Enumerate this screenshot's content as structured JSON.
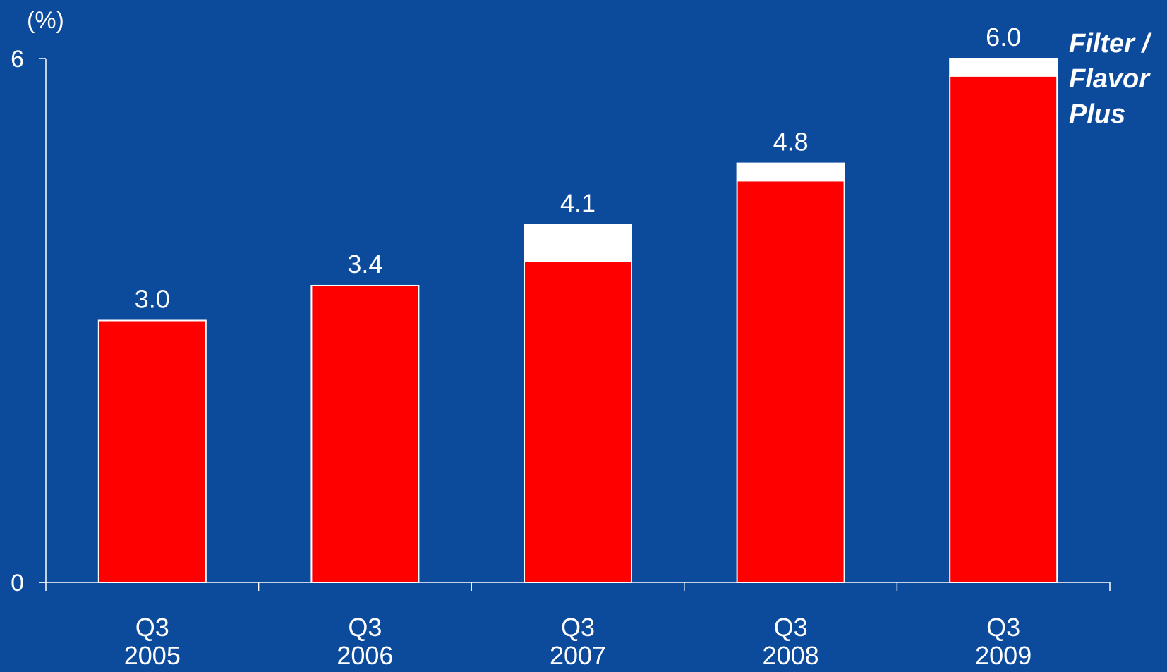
{
  "chart_data": {
    "type": "bar",
    "stacked": true,
    "unit_label": "(%)",
    "title": "",
    "xlabel": "",
    "ylabel": "",
    "ylim": [
      0,
      6
    ],
    "yticks": [
      "0",
      "6"
    ],
    "grid": false,
    "categories": [
      [
        "Q3",
        "2005"
      ],
      [
        "Q3",
        "2006"
      ],
      [
        "Q3",
        "2007"
      ],
      [
        "Q3",
        "2008"
      ],
      [
        "Q3",
        "2009"
      ]
    ],
    "series": [
      {
        "values": [
          3.0,
          3.4,
          3.68,
          4.6,
          5.8
        ],
        "color": "#ff0000"
      },
      {
        "name": "Filter / Flavor Plus",
        "values": [
          0,
          0,
          0.42,
          0.2,
          0.2
        ],
        "color": "#ffffff"
      }
    ],
    "totals": [
      "3.0",
      "3.4",
      "4.1",
      "4.8",
      "6.0"
    ],
    "legend": {
      "lines": [
        "Filter /",
        "Flavor",
        "Plus"
      ],
      "placement": "top-right"
    },
    "colors": {
      "background": "#0c4a9c",
      "axis": "#ffffff",
      "text": "#ffffff"
    }
  }
}
